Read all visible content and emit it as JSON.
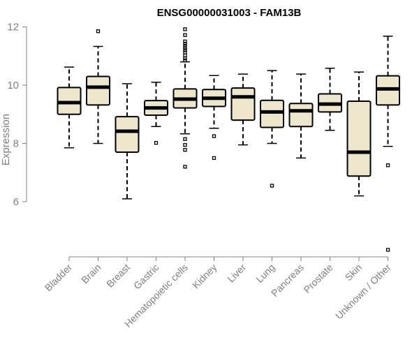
{
  "chart_data": {
    "type": "boxplot",
    "title": "ENSG00000031003 - FAM13B",
    "xlabel": "",
    "ylabel": "Expression",
    "yticks": [
      6,
      8,
      10,
      12
    ],
    "ylim": [
      4,
      12
    ],
    "grid": false,
    "legend": "none",
    "box_fill": "#ede6cc",
    "categories": [
      "Bladder",
      "Brain",
      "Breast",
      "Gastric",
      "Hematopoietic cells",
      "Kidney",
      "Liver",
      "Lung",
      "Pancreas",
      "Prostate",
      "Skin",
      "Unknown / Other"
    ],
    "boxes": [
      {
        "q1": 9.0,
        "median": 9.4,
        "q3": 9.92,
        "whisker_low": 7.85,
        "whisker_high": 10.62,
        "outliers": []
      },
      {
        "q1": 9.32,
        "median": 9.93,
        "q3": 10.3,
        "whisker_low": 8.0,
        "whisker_high": 11.33,
        "outliers": [
          11.85
        ]
      },
      {
        "q1": 7.7,
        "median": 8.42,
        "q3": 8.92,
        "whisker_low": 6.1,
        "whisker_high": 10.05,
        "outliers": []
      },
      {
        "q1": 8.97,
        "median": 9.22,
        "q3": 9.47,
        "whisker_low": 8.58,
        "whisker_high": 10.1,
        "outliers": [
          8.02
        ]
      },
      {
        "q1": 9.22,
        "median": 9.52,
        "q3": 9.87,
        "whisker_low": 8.33,
        "whisker_high": 10.8,
        "outliers": [
          11.92,
          11.72,
          11.5,
          11.42,
          11.35,
          11.27,
          11.2,
          11.12,
          11.02,
          10.92,
          10.85,
          8.15,
          7.95,
          7.78,
          7.2
        ]
      },
      {
        "q1": 9.27,
        "median": 9.55,
        "q3": 9.85,
        "whisker_low": 8.52,
        "whisker_high": 10.33,
        "outliers": [
          8.25,
          7.5
        ]
      },
      {
        "q1": 8.8,
        "median": 9.6,
        "q3": 9.9,
        "whisker_low": 7.95,
        "whisker_high": 10.38,
        "outliers": []
      },
      {
        "q1": 8.55,
        "median": 9.08,
        "q3": 9.48,
        "whisker_low": 8.0,
        "whisker_high": 10.5,
        "outliers": [
          6.55
        ]
      },
      {
        "q1": 8.58,
        "median": 9.12,
        "q3": 9.37,
        "whisker_low": 7.5,
        "whisker_high": 10.38,
        "outliers": []
      },
      {
        "q1": 9.08,
        "median": 9.35,
        "q3": 9.7,
        "whisker_low": 8.45,
        "whisker_high": 10.58,
        "outliers": []
      },
      {
        "q1": 6.88,
        "median": 7.7,
        "q3": 9.45,
        "whisker_low": 6.2,
        "whisker_high": 10.45,
        "outliers": []
      },
      {
        "q1": 9.32,
        "median": 9.87,
        "q3": 10.32,
        "whisker_low": 7.9,
        "whisker_high": 11.68,
        "outliers": [
          7.25,
          4.35
        ]
      }
    ]
  }
}
